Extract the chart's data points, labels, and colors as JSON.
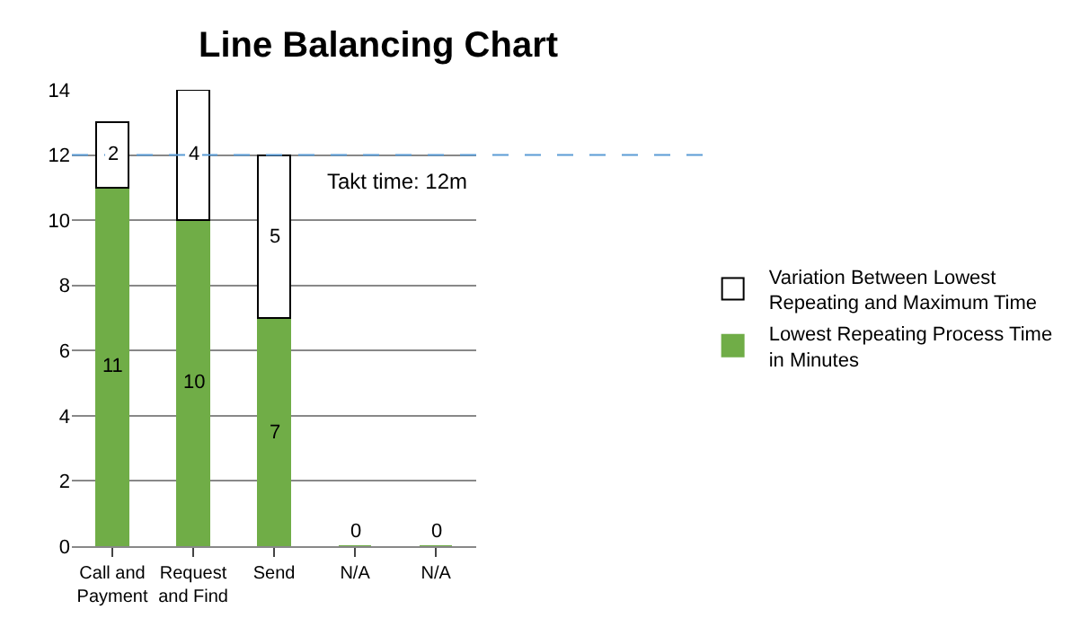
{
  "chart_data": {
    "type": "bar",
    "title": "Line Balancing Chart",
    "stacked": true,
    "categories": [
      "Call and Payment",
      "Request and Find",
      "Send",
      "N/A",
      "N/A"
    ],
    "series": [
      {
        "name": "Lowest Repeating Process Time in Minutes",
        "color": "#70ad47",
        "values": [
          11,
          10,
          7,
          0,
          0
        ]
      },
      {
        "name": "Variation Between Lowest Repeating and Maximum Time",
        "color": "#ffffff",
        "values": [
          2,
          4,
          5,
          null,
          null
        ]
      }
    ],
    "ylim": [
      0,
      14
    ],
    "yticks": [
      0,
      2,
      4,
      6,
      8,
      10,
      12,
      14
    ],
    "grid": "y",
    "legend": "right",
    "data_labels": true,
    "ref_lines": [
      {
        "axis": "y",
        "value": 12,
        "label": "Takt time: 12m",
        "color": "#5b9bd5",
        "line_style": "dashed"
      }
    ]
  }
}
